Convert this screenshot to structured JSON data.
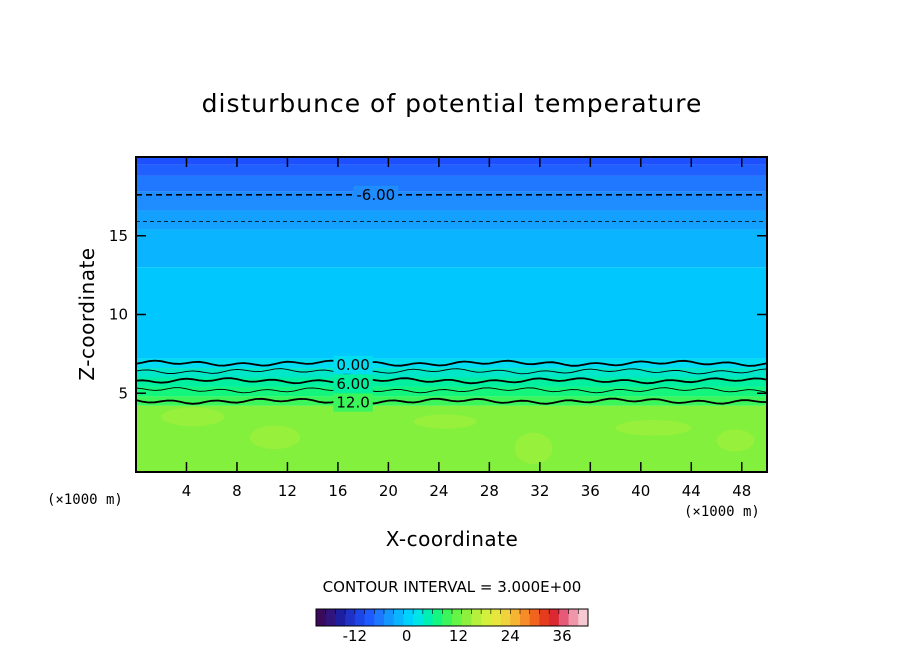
{
  "chart_data": {
    "type": "heatmap",
    "title": "disturbunce of potential temperature",
    "xlabel": "X-coordinate",
    "ylabel": "Z-coordinate",
    "x_unit_label": "(×1000 m)",
    "y_unit_label": "(×1000 m)",
    "xlim": [
      0,
      50
    ],
    "ylim": [
      0,
      20
    ],
    "x_ticks": [
      4,
      8,
      12,
      16,
      20,
      24,
      28,
      32,
      36,
      40,
      44,
      48
    ],
    "y_ticks": [
      5,
      10,
      15
    ],
    "contour_interval_text": "CONTOUR INTERVAL = 3.000E+00",
    "contour_labels": [
      {
        "text": "-6.00",
        "x": 19,
        "z": 17.6
      },
      {
        "text": "0.00",
        "x": 17.2,
        "z": 6.8
      },
      {
        "text": "6.00",
        "x": 17.2,
        "z": 5.6
      },
      {
        "text": "12.0",
        "x": 17.2,
        "z": 4.4
      }
    ],
    "contour_lines": [
      {
        "z": 17.6,
        "style": "dashed"
      },
      {
        "z": 15.9,
        "style": "dashed-thin"
      },
      {
        "z": 6.9,
        "style": "solid"
      },
      {
        "z": 6.4,
        "style": "solid-thin"
      },
      {
        "z": 5.8,
        "style": "solid"
      },
      {
        "z": 5.2,
        "style": "solid-thin"
      },
      {
        "z": 4.5,
        "style": "solid"
      }
    ],
    "field_bands": [
      {
        "z_from": 19.5,
        "z_to": 20,
        "color": "#1e50ff"
      },
      {
        "z_from": 18.8,
        "z_to": 19.5,
        "color": "#1f60ff"
      },
      {
        "z_from": 17.8,
        "z_to": 18.8,
        "color": "#1f78ff"
      },
      {
        "z_from": 16.6,
        "z_to": 17.8,
        "color": "#1f8cff"
      },
      {
        "z_from": 15.4,
        "z_to": 16.6,
        "color": "#14a0ff"
      },
      {
        "z_from": 13.0,
        "z_to": 15.4,
        "color": "#0ab4ff"
      },
      {
        "z_from": 7.2,
        "z_to": 13.0,
        "color": "#00c8ff"
      },
      {
        "z_from": 6.6,
        "z_to": 7.2,
        "color": "#00dcf0"
      },
      {
        "z_from": 6.0,
        "z_to": 6.6,
        "color": "#00e6c8"
      },
      {
        "z_from": 5.4,
        "z_to": 6.0,
        "color": "#00f0a0"
      },
      {
        "z_from": 4.8,
        "z_to": 5.4,
        "color": "#14f57d"
      },
      {
        "z_from": 4.2,
        "z_to": 4.8,
        "color": "#3cf55a"
      },
      {
        "z_from": 0,
        "z_to": 4.2,
        "color": "#82f03c"
      }
    ],
    "colorbar": {
      "tick_labels": [
        "-12",
        "0",
        "12",
        "24",
        "36"
      ],
      "tick_values": [
        -12,
        0,
        12,
        24,
        36
      ],
      "range": [
        -21,
        42
      ],
      "step": 3,
      "colors": [
        "#3c0a5a",
        "#32147d",
        "#1e1ea0",
        "#1e32c8",
        "#1e46e6",
        "#1e5aff",
        "#1e78ff",
        "#1496ff",
        "#0ab4ff",
        "#00d2ff",
        "#00e6e6",
        "#00f0b4",
        "#14f582",
        "#3cf55a",
        "#64f546",
        "#8cf03c",
        "#b4f03c",
        "#d2f03c",
        "#e6e63c",
        "#f0d23c",
        "#f5b432",
        "#f58c28",
        "#f0641e",
        "#e63c1e",
        "#dc2832",
        "#e65a78",
        "#f096aa",
        "#f5c8d2"
      ]
    }
  }
}
